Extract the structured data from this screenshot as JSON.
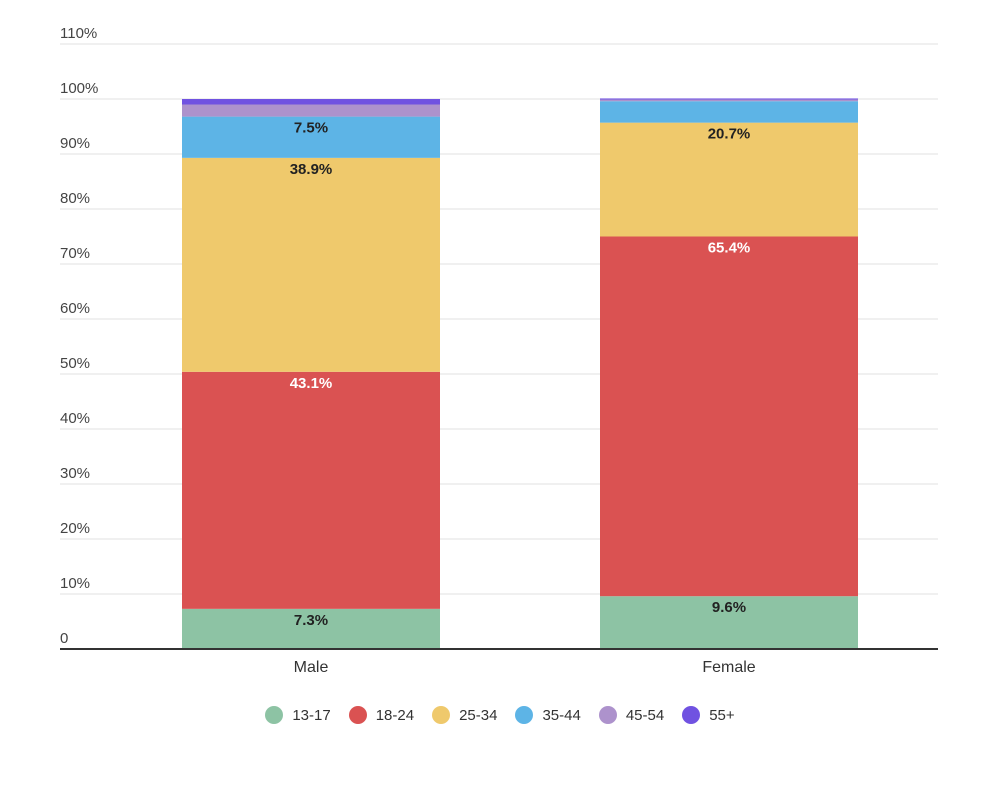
{
  "chart_data": {
    "type": "bar",
    "stacked": true,
    "title": "",
    "xlabel": "",
    "ylabel": "",
    "categories": [
      "Male",
      "Female"
    ],
    "ylim": [
      0,
      110
    ],
    "yticks": [
      0,
      10,
      20,
      30,
      40,
      50,
      60,
      70,
      80,
      90,
      100,
      110
    ],
    "ytick_labels": [
      "0",
      "10%",
      "20%",
      "30%",
      "40%",
      "50%",
      "60%",
      "70%",
      "80%",
      "90%",
      "100%",
      "110%"
    ],
    "grid": true,
    "legend_position": "bottom",
    "series": [
      {
        "name": "13-17",
        "color": "#8dc3a4",
        "values": [
          7.3,
          9.6
        ],
        "labels": [
          "7.3%",
          "9.6%"
        ],
        "label_color": "#222222"
      },
      {
        "name": "18-24",
        "color": "#da5252",
        "values": [
          43.1,
          65.4
        ],
        "labels": [
          "43.1%",
          "65.4%"
        ],
        "label_color": "#ffffff"
      },
      {
        "name": "25-34",
        "color": "#efc96c",
        "values": [
          38.9,
          20.7
        ],
        "labels": [
          "38.9%",
          "20.7%"
        ],
        "label_color": "#222222"
      },
      {
        "name": "35-44",
        "color": "#5db4e6",
        "values": [
          7.5,
          3.9
        ],
        "labels": [
          "7.5%",
          ""
        ],
        "label_color": "#222222"
      },
      {
        "name": "45-54",
        "color": "#ad92cc",
        "values": [
          2.2,
          0.3
        ],
        "labels": [
          "",
          ""
        ],
        "label_color": "#222222"
      },
      {
        "name": "55+",
        "color": "#7052e1",
        "values": [
          1.0,
          0.2
        ],
        "labels": [
          "",
          ""
        ],
        "label_color": "#222222"
      }
    ]
  }
}
